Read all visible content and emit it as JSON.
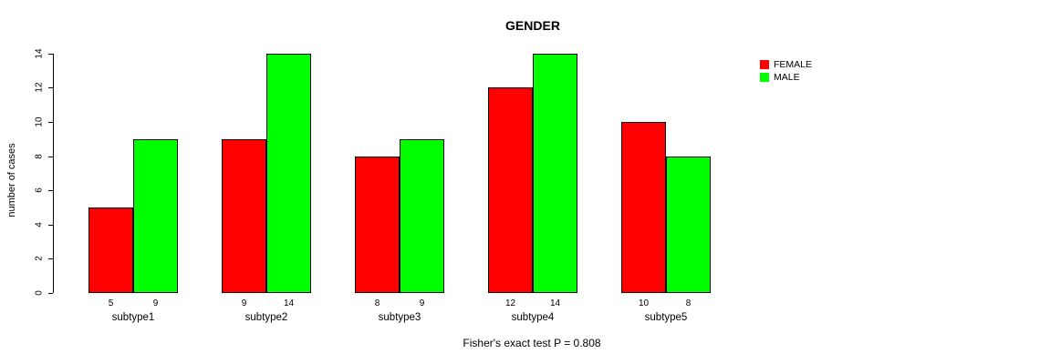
{
  "chart_data": {
    "type": "bar",
    "title": "GENDER",
    "ylabel": "number of cases",
    "xlabel": "",
    "footer": "Fisher's exact test P = 0.808",
    "categories": [
      "subtype1",
      "subtype2",
      "subtype3",
      "subtype4",
      "subtype5"
    ],
    "series": [
      {
        "name": "FEMALE",
        "color": "#ff0000",
        "values": [
          5,
          9,
          8,
          12,
          10
        ]
      },
      {
        "name": "MALE",
        "color": "#00ff00",
        "values": [
          9,
          14,
          9,
          14,
          8
        ]
      }
    ],
    "yticks": [
      0,
      2,
      4,
      6,
      8,
      10,
      12,
      14
    ],
    "ylim": [
      0,
      14
    ],
    "grid": false,
    "legend_position": "top-right",
    "bar_value_labels": true
  }
}
